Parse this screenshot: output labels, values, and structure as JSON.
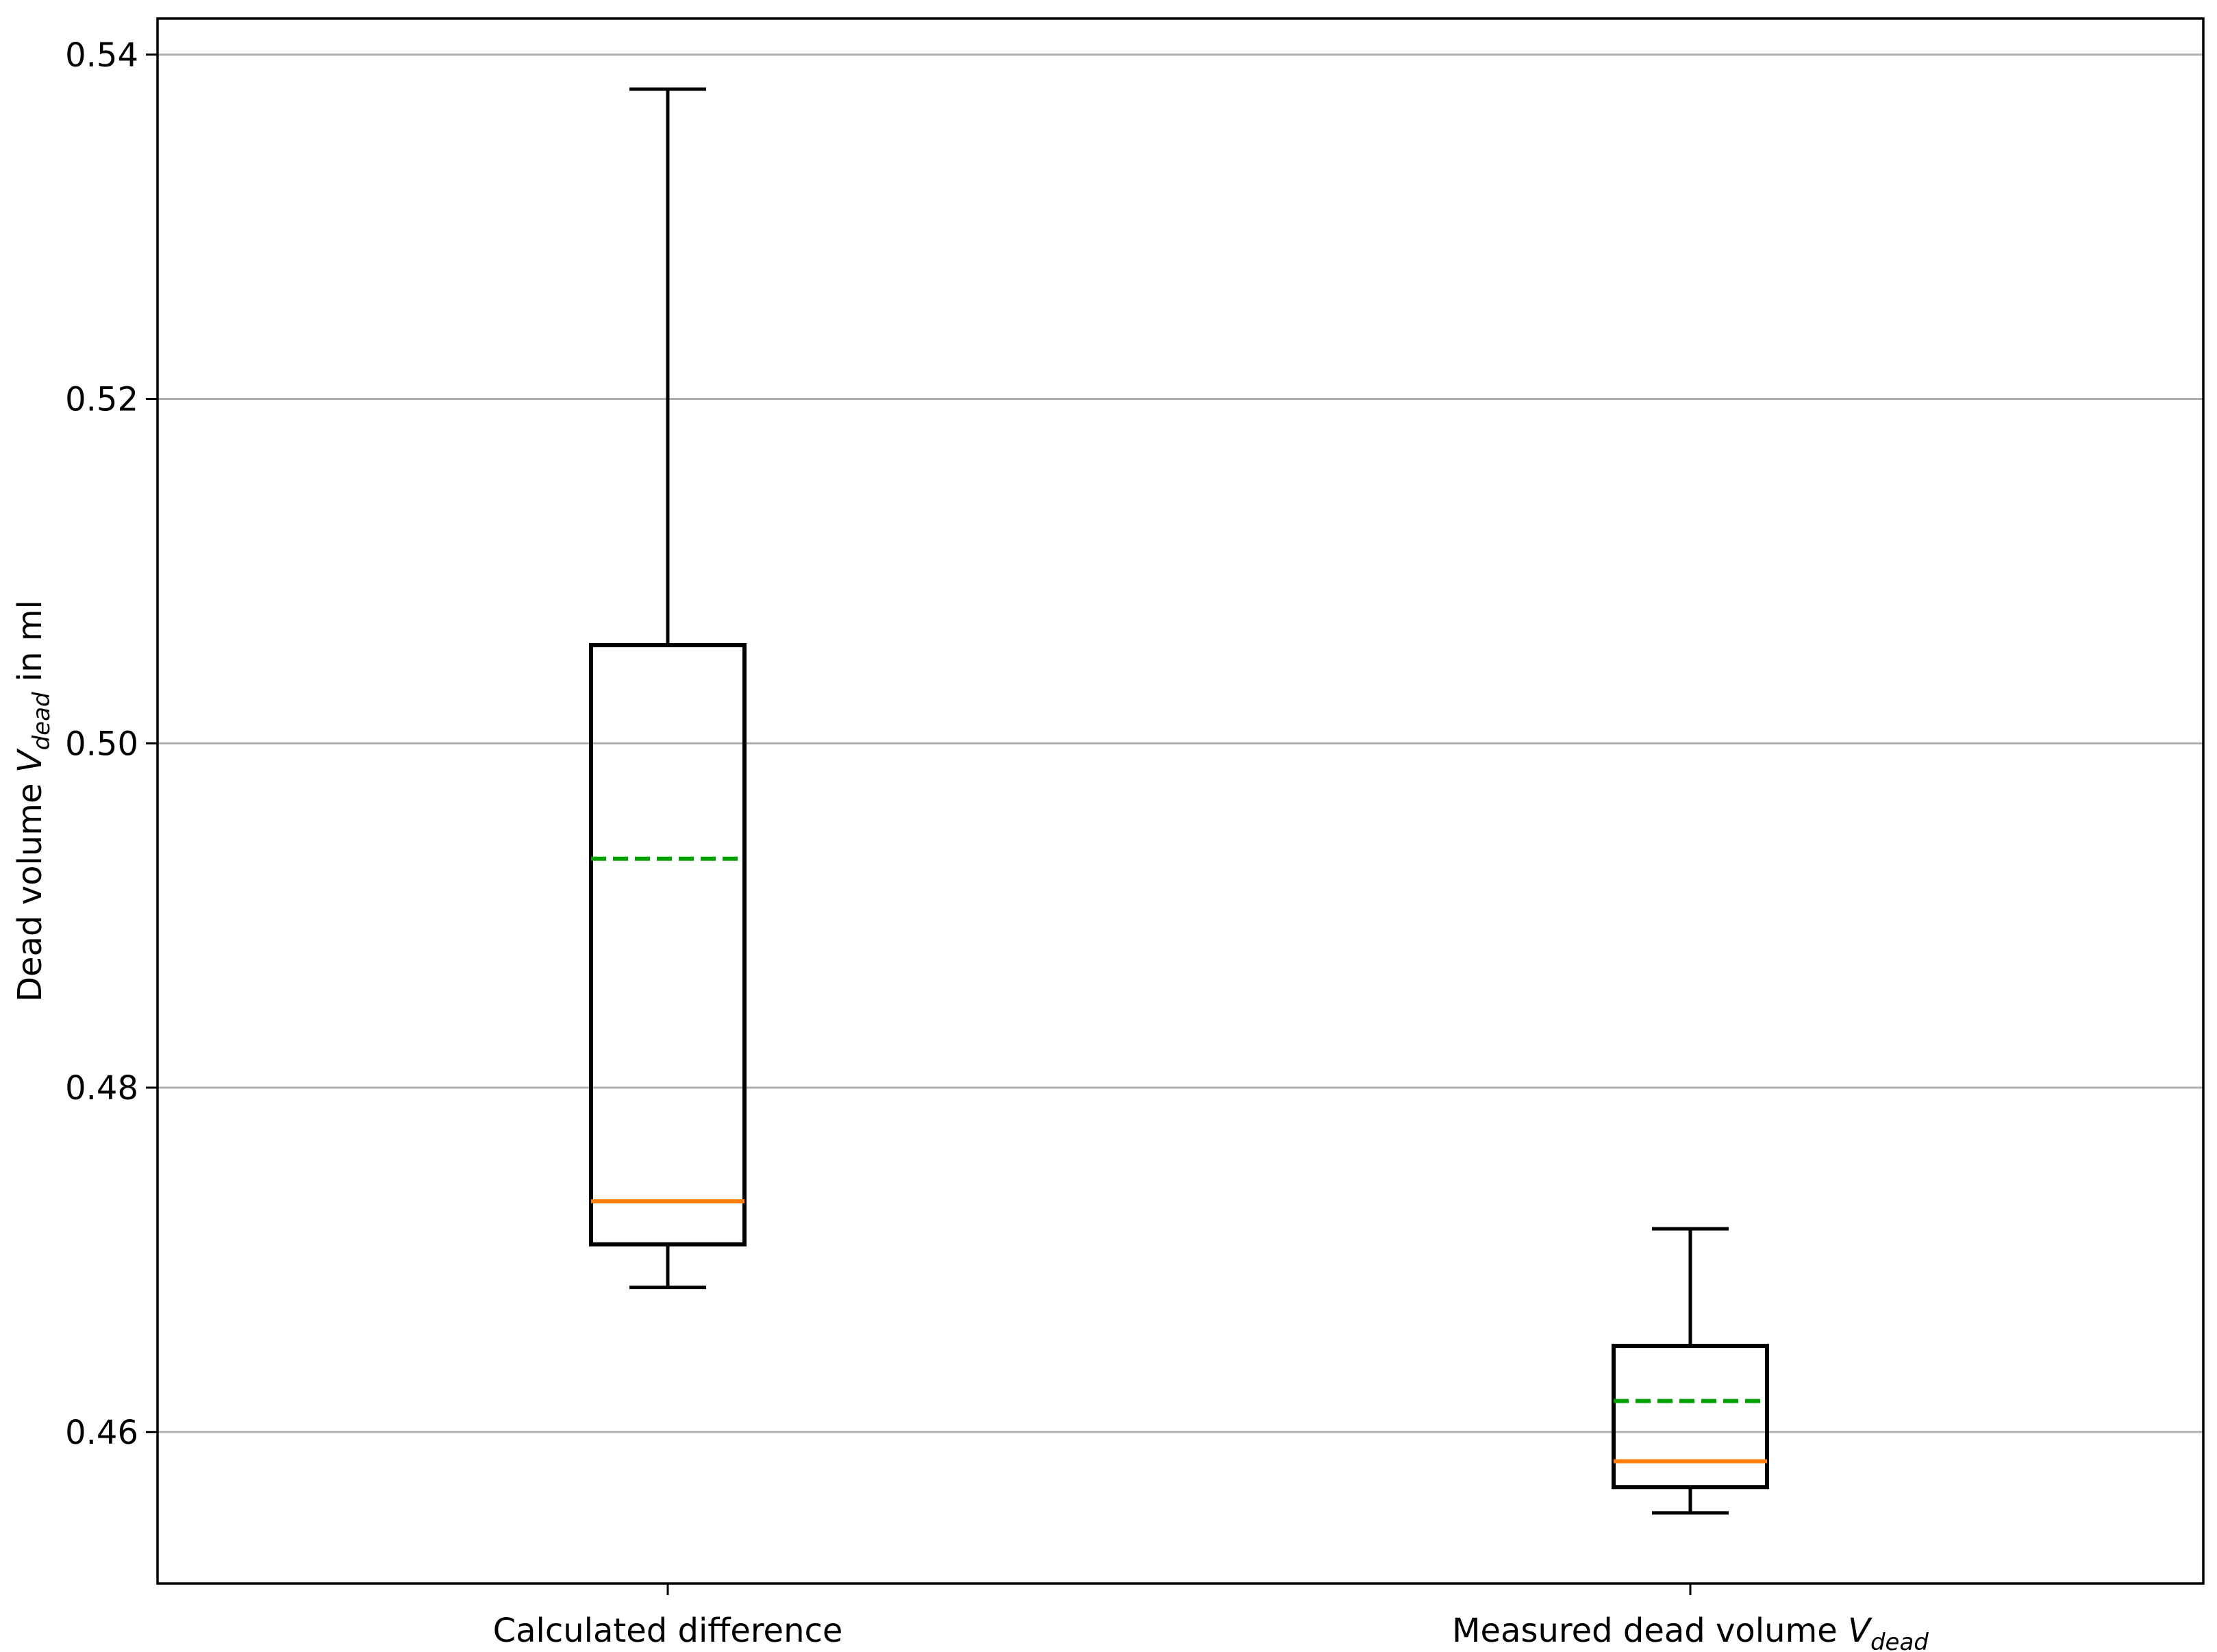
{
  "chart_data": {
    "type": "box",
    "title": "",
    "ylabel": {
      "main": "Dead volume ",
      "var": "V",
      "sub": "dead",
      "suffix": " in ml"
    },
    "ylim": [
      0.4512,
      0.5421
    ],
    "yticks": [
      0.46,
      0.48,
      0.5,
      0.52,
      0.54
    ],
    "ytick_labels": [
      "0.46",
      "0.48",
      "0.50",
      "0.52",
      "0.54"
    ],
    "grid": "y",
    "colors": {
      "box": "#000000",
      "median": "#ff7f0e",
      "mean": "#00a000",
      "grid": "#b0b0b0"
    },
    "categories": [
      {
        "label": "Calculated difference",
        "var": "",
        "sub": ""
      },
      {
        "label": "Measured dead volume ",
        "var": "V",
        "sub": "dead"
      }
    ],
    "series": [
      {
        "whisker_low": 0.4684,
        "q1": 0.4709,
        "median": 0.4734,
        "mean": 0.4933,
        "q3": 0.5057,
        "whisker_high": 0.538
      },
      {
        "whisker_low": 0.4553,
        "q1": 0.4568,
        "median": 0.4583,
        "mean": 0.4618,
        "q3": 0.465,
        "whisker_high": 0.4718
      }
    ]
  }
}
